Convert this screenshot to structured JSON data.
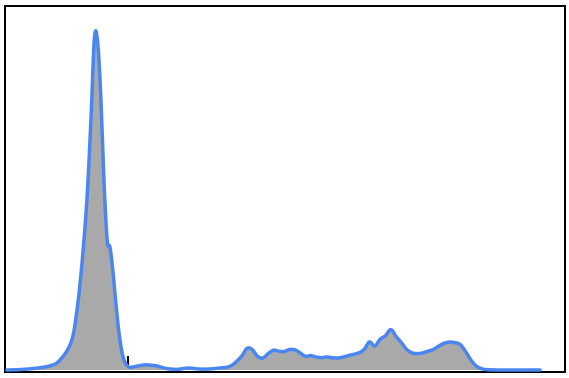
{
  "chart_data": {
    "type": "area",
    "title": "",
    "xlabel": "",
    "ylabel": "",
    "x_ticks_visible": false,
    "y_ticks_visible": false,
    "tick_labels": [],
    "grid": false,
    "legend": "none",
    "xlim": [
      0,
      100
    ],
    "ylim": [
      0,
      1
    ],
    "fill_color": "#a9a9a9",
    "line_color": "#4a86f0",
    "frame_color": "#000000",
    "x_tick_positions": [
      22.7,
      64.5,
      79.8
    ],
    "series": [
      {
        "x": [
          0,
          4,
          8,
          10,
          12,
          13,
          14,
          15,
          15.8,
          16.4,
          17,
          17.6,
          18.2,
          18.8,
          19.3,
          19.8,
          20.4,
          21,
          21.6,
          22.2,
          23,
          24,
          26,
          28,
          30,
          32,
          34,
          36,
          38,
          40,
          42,
          44,
          45,
          46,
          47,
          48,
          49,
          50,
          51,
          52,
          53,
          54,
          55,
          56,
          57,
          58,
          59,
          60,
          62,
          64,
          66,
          67,
          68,
          69,
          70,
          71,
          72,
          73,
          74,
          75,
          76,
          77,
          78,
          79,
          80,
          81,
          82,
          83,
          84,
          85,
          86,
          87,
          88,
          89,
          90,
          92,
          94,
          96,
          98,
          100
        ],
        "y": [
          0.0,
          0.003,
          0.012,
          0.03,
          0.08,
          0.16,
          0.3,
          0.5,
          0.75,
          0.97,
          0.96,
          0.8,
          0.55,
          0.38,
          0.36,
          0.3,
          0.2,
          0.11,
          0.05,
          0.02,
          0.008,
          0.01,
          0.015,
          0.012,
          0.004,
          0.002,
          0.006,
          0.003,
          0.003,
          0.006,
          0.012,
          0.04,
          0.063,
          0.06,
          0.04,
          0.035,
          0.048,
          0.058,
          0.055,
          0.054,
          0.06,
          0.059,
          0.05,
          0.04,
          0.042,
          0.038,
          0.036,
          0.038,
          0.035,
          0.042,
          0.05,
          0.06,
          0.082,
          0.07,
          0.09,
          0.1,
          0.118,
          0.098,
          0.08,
          0.06,
          0.05,
          0.048,
          0.05,
          0.055,
          0.06,
          0.07,
          0.078,
          0.082,
          0.08,
          0.075,
          0.055,
          0.03,
          0.012,
          0.004,
          0.001,
          0.0,
          0.0,
          0.0,
          0.0,
          0.0
        ]
      }
    ]
  }
}
